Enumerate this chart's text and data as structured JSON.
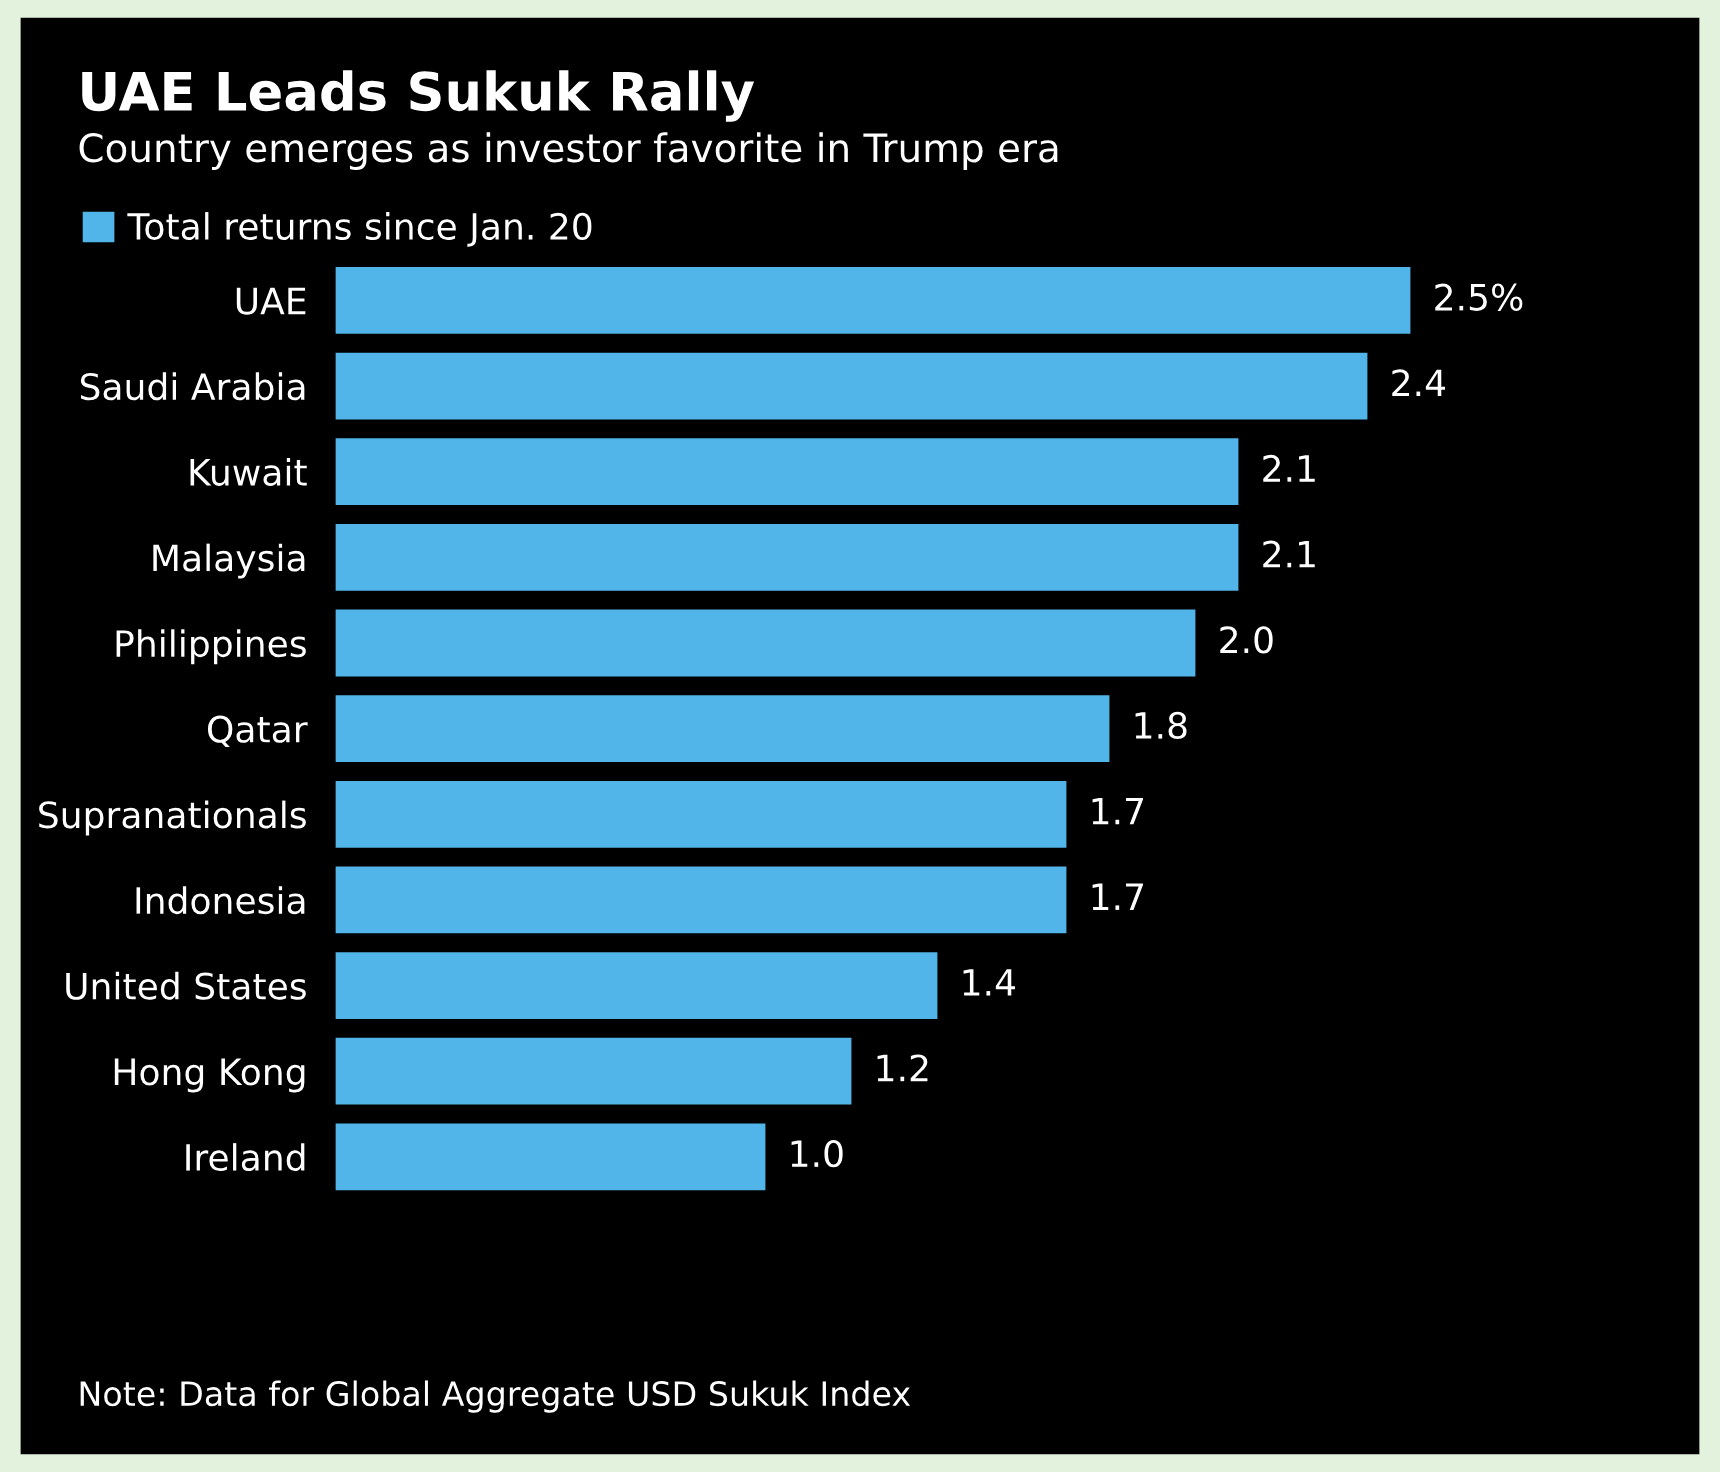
{
  "chart_data": {
    "type": "bar",
    "orientation": "horizontal",
    "title": "UAE Leads Sukuk Rally",
    "subtitle": "Country emerges as investor favorite in Trump era",
    "categories": [
      "UAE",
      "Saudi Arabia",
      "Kuwait",
      "Malaysia",
      "Philippines",
      "Qatar",
      "Supranationals",
      "Indonesia",
      "United States",
      "Hong Kong",
      "Ireland"
    ],
    "series": [
      {
        "name": "Total returns since Jan. 20",
        "color": "#52b5ea",
        "values": [
          2.5,
          2.4,
          2.1,
          2.1,
          2.0,
          1.8,
          1.7,
          1.7,
          1.4,
          1.2,
          1.0
        ],
        "value_labels": [
          "2.5%",
          "2.4",
          "2.1",
          "2.1",
          "2.0",
          "1.8",
          "1.7",
          "1.7",
          "1.4",
          "1.2",
          "1.0"
        ]
      }
    ],
    "legend": "top left",
    "grid": false,
    "annotations": [
      "Note: Data for Global Aggregate USD Sukuk Index"
    ]
  }
}
